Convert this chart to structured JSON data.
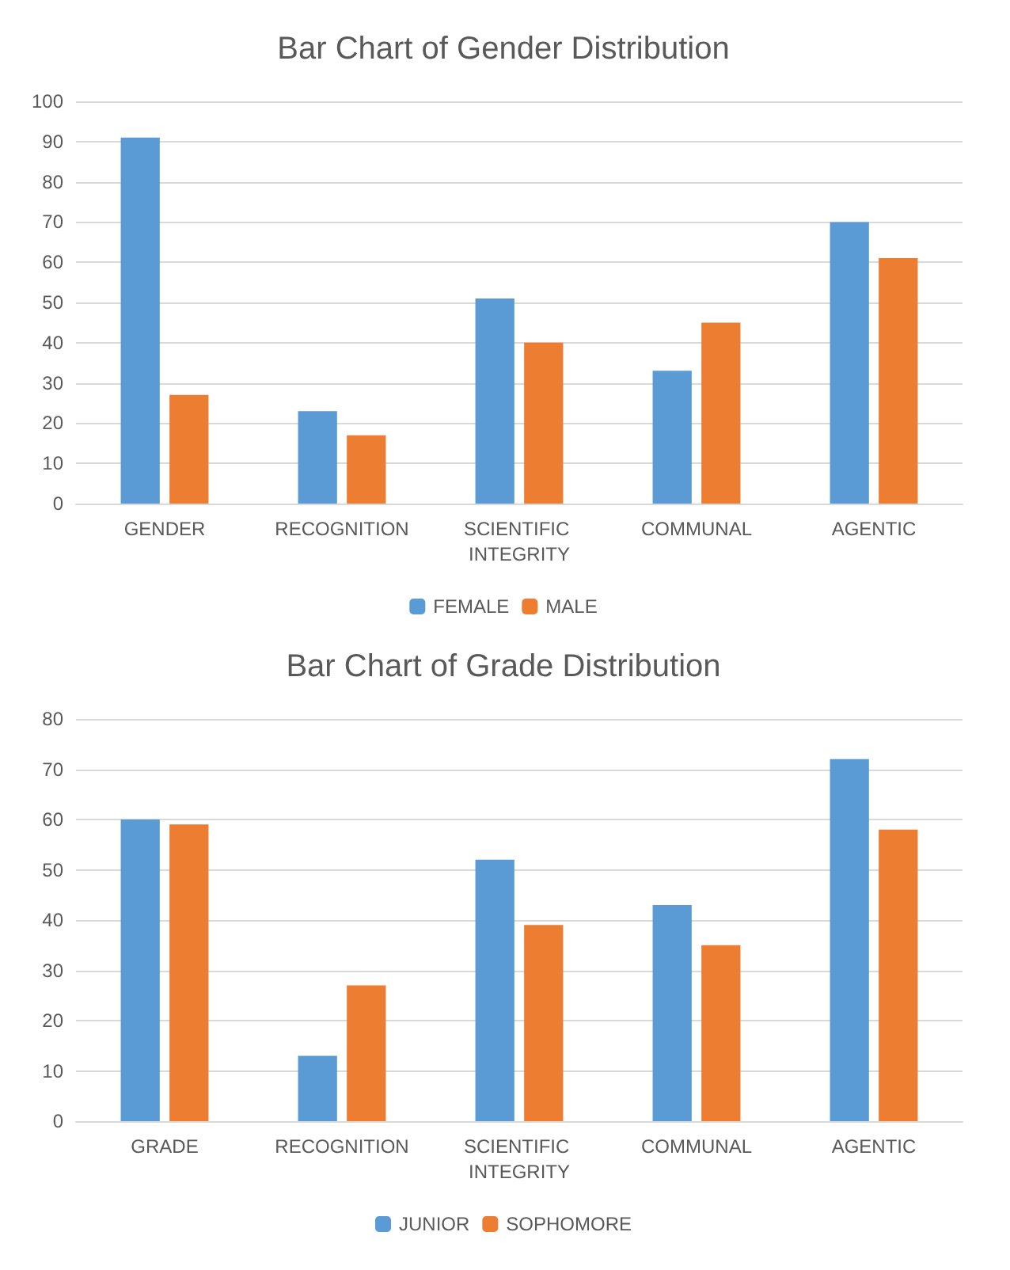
{
  "chart_data": [
    {
      "type": "bar",
      "title": "Bar Chart of Gender Distribution",
      "categories": [
        "GENDER",
        "RECOGNITION",
        "SCIENTIFIC INTEGRITY",
        "COMMUNAL",
        "AGENTIC"
      ],
      "series": [
        {
          "name": "FEMALE",
          "color": "#5b9bd5",
          "values": [
            91,
            23,
            51,
            33,
            70
          ]
        },
        {
          "name": "MALE",
          "color": "#ed7d31",
          "values": [
            27,
            17,
            40,
            45,
            61
          ]
        }
      ],
      "ylim": [
        0,
        100
      ],
      "yticks": [
        0,
        10,
        20,
        30,
        40,
        50,
        60,
        70,
        80,
        90,
        100
      ],
      "grid": "y",
      "legend": "bottom"
    },
    {
      "type": "bar",
      "title": "Bar Chart of Grade Distribution",
      "categories": [
        "GRADE",
        "RECOGNITION",
        "SCIENTIFIC INTEGRITY",
        "COMMUNAL",
        "AGENTIC"
      ],
      "series": [
        {
          "name": "JUNIOR",
          "color": "#5b9bd5",
          "values": [
            60,
            13,
            52,
            43,
            72
          ]
        },
        {
          "name": "SOPHOMORE",
          "color": "#ed7d31",
          "values": [
            59,
            27,
            39,
            35,
            58
          ]
        }
      ],
      "ylim": [
        0,
        80
      ],
      "yticks": [
        0,
        10,
        20,
        30,
        40,
        50,
        60,
        70,
        80
      ],
      "grid": "y",
      "legend": "bottom"
    }
  ]
}
